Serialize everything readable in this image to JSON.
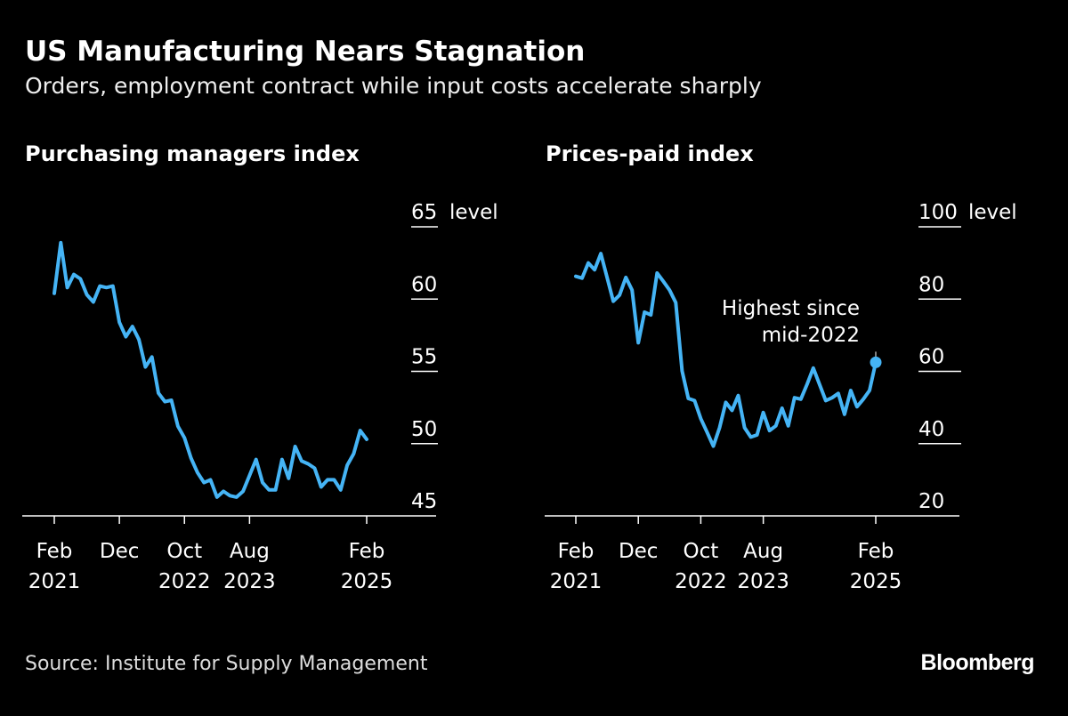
{
  "header": {
    "title": "US Manufacturing Nears Stagnation",
    "subtitle": "Orders, employment contract while input costs accelerate sharply"
  },
  "footer": {
    "source": "Source: Institute for Supply Management",
    "logo": "Bloomberg"
  },
  "colors": {
    "background": "#000000",
    "line": "#45b4f5",
    "axis": "#ffffff",
    "text": "#ffffff"
  },
  "chart_data": [
    {
      "type": "line",
      "title": "Purchasing managers index",
      "ylabel": "level",
      "ylim": [
        45,
        65
      ],
      "yticks": [
        "65",
        "60",
        "55",
        "50",
        "45"
      ],
      "xlim": [
        "2021-02",
        "2025-02"
      ],
      "xticks": [
        {
          "month": "2021-02",
          "line1": "Feb",
          "line2": "2021"
        },
        {
          "month": "2021-12",
          "line1": "Dec",
          "line2": ""
        },
        {
          "month": "2022-10",
          "line1": "Oct",
          "line2": "2022"
        },
        {
          "month": "2023-08",
          "line1": "Aug",
          "line2": "2023"
        },
        {
          "month": "2025-02",
          "line1": "Feb",
          "line2": "2025"
        }
      ],
      "grid": false,
      "start": "2021-02",
      "frequency": "monthly",
      "values": [
        60.4,
        63.9,
        60.8,
        61.7,
        61.4,
        60.3,
        59.8,
        60.9,
        60.8,
        60.9,
        58.4,
        57.4,
        58.1,
        57.2,
        55.3,
        56.0,
        53.5,
        52.9,
        53.0,
        51.2,
        50.4,
        49.0,
        48.0,
        47.3,
        47.5,
        46.3,
        46.7,
        46.4,
        46.3,
        46.7,
        47.8,
        48.9,
        47.3,
        46.8,
        46.8,
        48.9,
        47.6,
        49.8,
        48.8,
        48.6,
        48.3,
        47.0,
        47.5,
        47.5,
        46.8,
        48.5,
        49.3,
        50.9,
        50.3
      ]
    },
    {
      "type": "line",
      "title": "Prices-paid index",
      "ylabel": "level",
      "ylim": [
        20,
        100
      ],
      "yticks": [
        "100",
        "80",
        "60",
        "40",
        "20"
      ],
      "xlim": [
        "2021-02",
        "2025-02"
      ],
      "xticks": [
        {
          "month": "2021-02",
          "line1": "Feb",
          "line2": "2021"
        },
        {
          "month": "2021-12",
          "line1": "Dec",
          "line2": ""
        },
        {
          "month": "2022-10",
          "line1": "Oct",
          "line2": "2022"
        },
        {
          "month": "2023-08",
          "line1": "Aug",
          "line2": "2023"
        },
        {
          "month": "2025-02",
          "line1": "Feb",
          "line2": "2025"
        }
      ],
      "grid": false,
      "start": "2021-02",
      "frequency": "monthly",
      "values": [
        86.3,
        85.8,
        90.0,
        88.1,
        92.6,
        86.0,
        79.4,
        81.1,
        86.0,
        82.5,
        67.9,
        76.4,
        75.6,
        87.2,
        84.9,
        82.5,
        79.0,
        60.1,
        52.5,
        51.9,
        46.9,
        43.2,
        39.3,
        44.4,
        51.4,
        49.2,
        53.3,
        44.4,
        41.8,
        42.4,
        48.6,
        43.6,
        44.9,
        49.8,
        44.9,
        52.7,
        52.3,
        56.4,
        60.9,
        56.4,
        51.9,
        52.7,
        53.9,
        48.1,
        54.7,
        50.2,
        52.3,
        54.7,
        62.5
      ],
      "annotation": {
        "line1": "Highest since",
        "line2": "mid-2022",
        "month": "2025-02",
        "marker": "dot"
      }
    }
  ]
}
